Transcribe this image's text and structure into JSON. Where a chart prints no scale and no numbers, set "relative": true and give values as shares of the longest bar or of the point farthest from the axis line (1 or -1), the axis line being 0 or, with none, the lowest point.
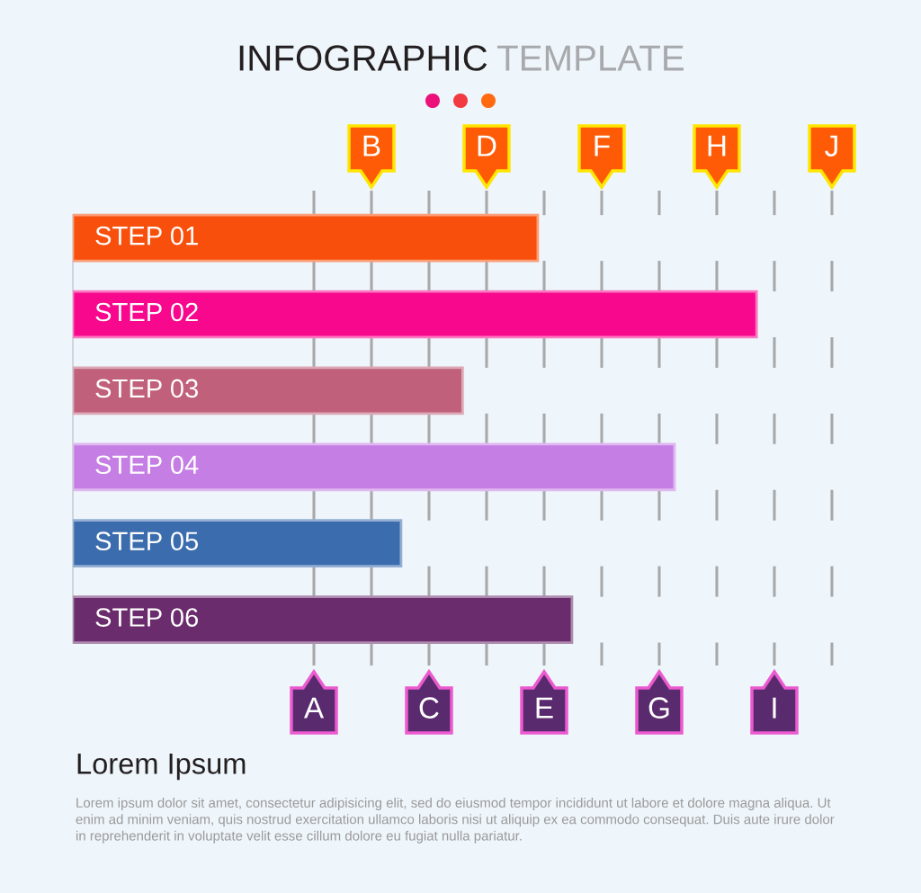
{
  "chart_data": {
    "type": "bar",
    "orientation": "horizontal",
    "relative": true,
    "title": "INFOGRAPHIC TEMPLATE",
    "categories": [
      "STEP 01",
      "STEP 02",
      "STEP 03",
      "STEP 04",
      "STEP 05",
      "STEP 06"
    ],
    "values": [
      0.68,
      1,
      0.57,
      0.88,
      0.48,
      0.73
    ],
    "colors": [
      "#f8500c",
      "#f7088c",
      "#c0607a",
      "#c47ee4",
      "#3a6cae",
      "#6a2c6c"
    ],
    "annotations": [
      "A",
      "B",
      "C",
      "D",
      "E",
      "F",
      "G",
      "H",
      "I",
      "J",
      "Lorem Ipsum",
      "Lorem ipsum dolor sit amet, consectetur adipisicing elit, sed do eiusmod tempor incididunt ut labore et dolore magna aliqua. Ut enim ad minim veniam, quis nostrud exercitation ullamco laboris nisi ut aliquip ex ea commodo consequat. Duis aute irure dolor in reprehenderit in voluptate velit esse cillum dolore eu fugiat nulla pariatur."
    ]
  }
}
